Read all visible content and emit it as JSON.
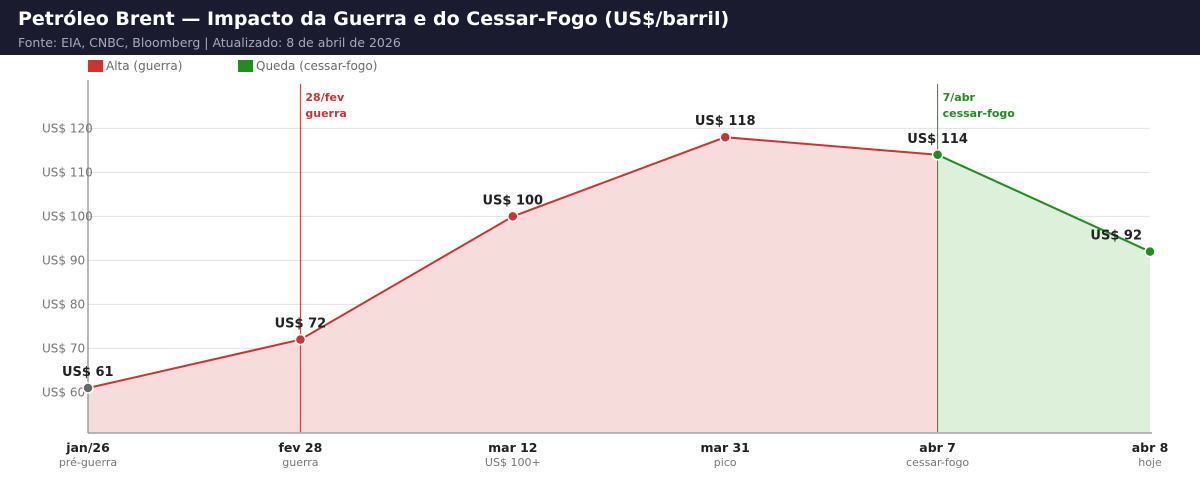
{
  "header": {
    "title": "Petróleo Brent — Impacto da Guerra e do Cessar-Fogo (US$/barril)",
    "subtitle": "Fonte: EIA, CNBC, Bloomberg  |  Atualizado: 8 de abril de 2026"
  },
  "colors": {
    "header_bg": "#1b1b2f",
    "rise": "#cc3333",
    "fall": "#228b22",
    "start_point": "#666666",
    "rise_fill": "#f7dcdc",
    "fall_fill": "#dcf0da"
  },
  "chart_data": {
    "type": "line",
    "title": "Petróleo Brent — Impacto da Guerra e do Cessar-Fogo (US$/barril)",
    "xlabel": "",
    "ylabel": "",
    "ylim": [
      51,
      131
    ],
    "y_ticks": [
      60,
      70,
      80,
      90,
      100,
      110,
      120
    ],
    "y_tick_prefix": "US$ ",
    "grid": true,
    "legend_placement": "top-left",
    "legend": [
      {
        "label": "Alta (guerra)",
        "color": "#cc3333"
      },
      {
        "label": "Queda (cessar-fogo)",
        "color": "#228b22"
      }
    ],
    "points": [
      {
        "x_label": "jan/26",
        "x_sub": "pré-guerra",
        "value": 61,
        "label": "US$ 61",
        "days": 0
      },
      {
        "x_label": "fev 28",
        "x_sub": "guerra",
        "value": 72,
        "label": "US$ 72",
        "days": 58
      },
      {
        "x_label": "mar 12",
        "x_sub": "US$ 100+",
        "value": 100,
        "label": "US$ 100",
        "days": 116
      },
      {
        "x_label": "mar 31",
        "x_sub": "pico",
        "value": 118,
        "label": "US$ 118",
        "days": 174
      },
      {
        "x_label": "abr 7",
        "x_sub": "cessar-fogo",
        "value": 114,
        "label": "US$ 114",
        "days": 232
      },
      {
        "x_label": "abr 8",
        "x_sub": "hoje",
        "value": 92,
        "label": "US$ 92",
        "days": 290
      }
    ],
    "series": [
      {
        "name": "Alta (guerra)",
        "from_index": 0,
        "to_index": 4
      },
      {
        "name": "Queda (cessar-fogo)",
        "from_index": 4,
        "to_index": 5
      }
    ],
    "annotations": [
      {
        "at_index": 1,
        "line1": "28/fev",
        "line2": "guerra",
        "color": "#cc3333"
      },
      {
        "at_index": 4,
        "line1": "7/abr",
        "line2": "cessar-fogo",
        "color": "#228b22"
      }
    ]
  }
}
